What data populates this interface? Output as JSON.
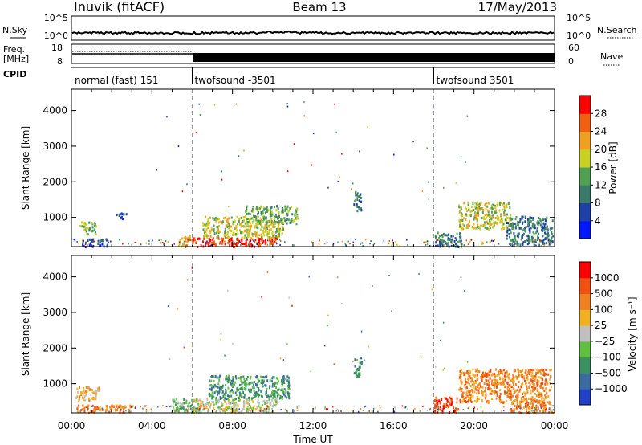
{
  "header": {
    "station": "Inuvik (fitACF)",
    "beam": "Beam 13",
    "date": "17/May/2013"
  },
  "aux_panels": {
    "nsky_label": "N.Sky",
    "nsearch_label": "N.Search",
    "freq_label": "Freq.",
    "freq_unit": "[MHz]",
    "nave_label": "Nave",
    "cpid_label": "CPID",
    "noise_ticks": [
      "10^5",
      "10^0"
    ],
    "freq_ticks": [
      "18",
      "8"
    ],
    "nave_ticks": [
      "60",
      "0"
    ]
  },
  "cpid_segments": [
    {
      "label": "normal (fast) 151",
      "start_hour": 0
    },
    {
      "label": "twofsound -3501",
      "start_hour": 6
    },
    {
      "label": "twofsound 3501",
      "start_hour": 18
    }
  ],
  "chart_data": [
    {
      "type": "heatmap",
      "name": "power",
      "ylabel": "Slant Range [km]",
      "xlabel": "Time UT",
      "x_ticks": [
        "00:00",
        "04:00",
        "08:00",
        "12:00",
        "16:00",
        "20:00",
        "00:00"
      ],
      "xlim_hours": [
        0,
        24
      ],
      "ylim_km": [
        180,
        4600
      ],
      "y_ticks": [
        1000,
        2000,
        3000,
        4000
      ],
      "colorbar": {
        "label": "Power [dB]",
        "ticks": [
          "4",
          "8",
          "12",
          "16",
          "20",
          "24",
          "28"
        ],
        "colors": [
          "#0018ff",
          "#1e3ea8",
          "#3a7a6a",
          "#4fa050",
          "#c8d020",
          "#f0a020",
          "#f06010",
          "#ff0000"
        ]
      },
      "regions": [
        {
          "t0": 0.4,
          "t1": 1.2,
          "r0": 550,
          "r1": 900,
          "level": 3
        },
        {
          "t0": 0.5,
          "t1": 1.8,
          "r0": 200,
          "r1": 420,
          "level": 1
        },
        {
          "t0": 2.2,
          "t1": 2.7,
          "r0": 950,
          "r1": 1150,
          "level": 1
        },
        {
          "t0": 5.3,
          "t1": 6.0,
          "r0": 200,
          "r1": 500,
          "level": 5
        },
        {
          "t0": 6.0,
          "t1": 10.2,
          "r0": 200,
          "r1": 450,
          "level": 7
        },
        {
          "t0": 6.5,
          "t1": 10.5,
          "r0": 450,
          "r1": 1050,
          "level": 4
        },
        {
          "t0": 8.6,
          "t1": 11.2,
          "r0": 850,
          "r1": 1350,
          "level": 3
        },
        {
          "t0": 14.0,
          "t1": 14.4,
          "r0": 1200,
          "r1": 1750,
          "level": 2
        },
        {
          "t0": 18.0,
          "t1": 19.4,
          "r0": 200,
          "r1": 600,
          "level": 2
        },
        {
          "t0": 19.2,
          "t1": 21.8,
          "r0": 700,
          "r1": 1450,
          "level": 4
        },
        {
          "t0": 21.6,
          "t1": 23.9,
          "r0": 250,
          "r1": 1050,
          "level": 2
        }
      ]
    },
    {
      "type": "heatmap",
      "name": "velocity",
      "ylabel": "Slant Range [km]",
      "xlabel": "Time UT",
      "x_ticks": [
        "00:00",
        "04:00",
        "08:00",
        "12:00",
        "16:00",
        "20:00",
        "00:00"
      ],
      "xlim_hours": [
        0,
        24
      ],
      "ylim_km": [
        180,
        4600
      ],
      "y_ticks": [
        1000,
        2000,
        3000,
        4000
      ],
      "colorbar": {
        "label": "Velocity [m s⁻¹]",
        "ticks": [
          "1000",
          "500",
          "100",
          "25",
          "−25",
          "−100",
          "−500",
          "−1000"
        ],
        "colors": [
          "#2040c8",
          "#3a6aa0",
          "#3a9060",
          "#60c040",
          "#c0c0c0",
          "#f0b020",
          "#f08020",
          "#f05010",
          "#ff0000"
        ]
      },
      "regions": [
        {
          "t0": 0.2,
          "t1": 1.4,
          "r0": 550,
          "r1": 950,
          "level": 5
        },
        {
          "t0": 0.2,
          "t1": 3.0,
          "r0": 200,
          "r1": 420,
          "level": 6
        },
        {
          "t0": 5.0,
          "t1": 6.4,
          "r0": 200,
          "r1": 600,
          "level": 3
        },
        {
          "t0": 6.0,
          "t1": 10.2,
          "r0": 200,
          "r1": 600,
          "level": 4
        },
        {
          "t0": 6.8,
          "t1": 10.8,
          "r0": 600,
          "r1": 1250,
          "level": 2
        },
        {
          "t0": 14.0,
          "t1": 14.4,
          "r0": 1200,
          "r1": 1750,
          "level": 2
        },
        {
          "t0": 18.0,
          "t1": 19.2,
          "r0": 200,
          "r1": 650,
          "level": 7
        },
        {
          "t0": 19.2,
          "t1": 23.8,
          "r0": 500,
          "r1": 1450,
          "level": 6
        },
        {
          "t0": 21.8,
          "t1": 23.9,
          "r0": 200,
          "r1": 550,
          "level": 6
        }
      ]
    }
  ]
}
